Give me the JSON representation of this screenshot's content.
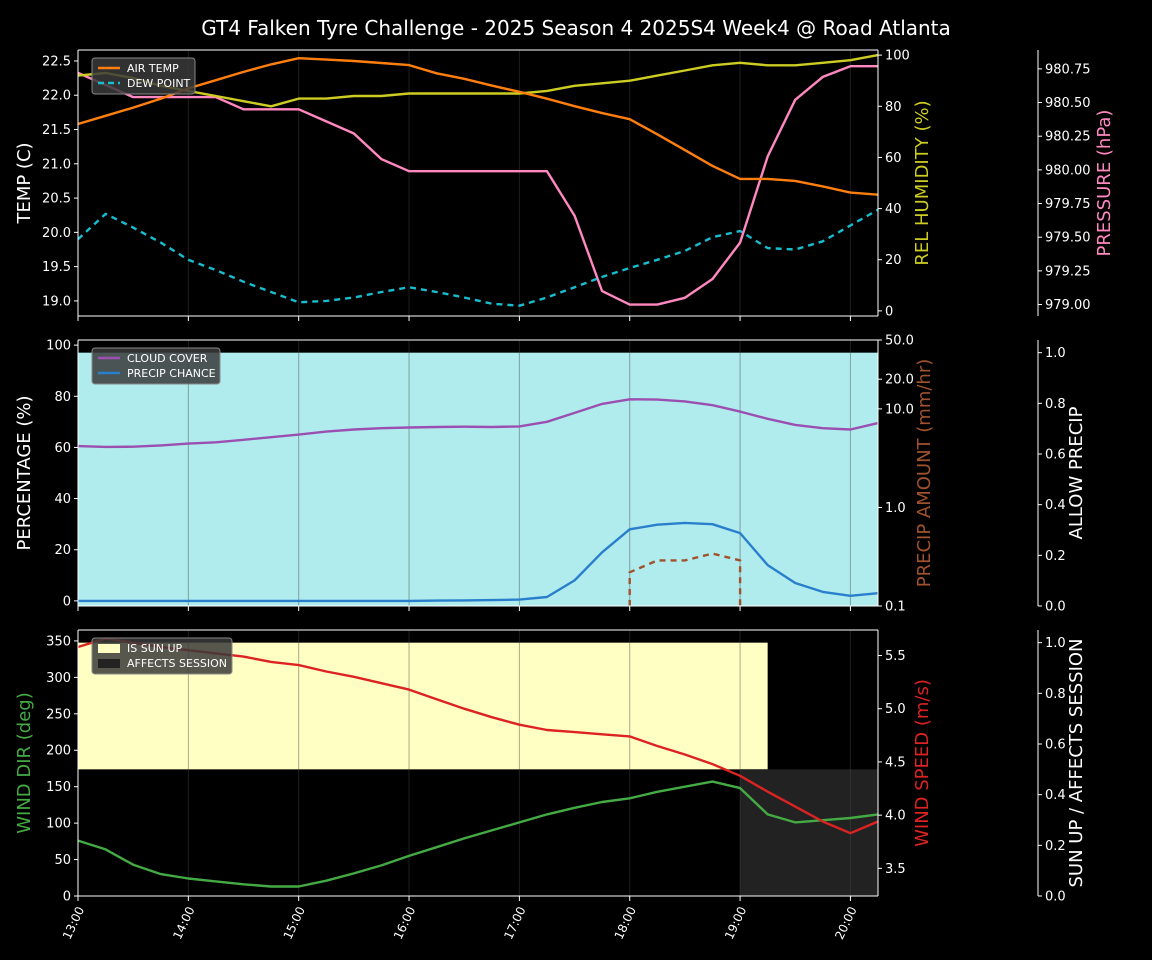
{
  "title": "GT4 Falken Tyre Challenge - 2025 Season 4 2025S4 Week4 @ Road Atlanta",
  "x_ticks": [
    "13:00",
    "14:00",
    "15:00",
    "16:00",
    "17:00",
    "18:00",
    "19:00",
    "20:00"
  ],
  "colors": {
    "air_temp": "#ff7f0e",
    "dew_point": "#17becf",
    "humidity": "#cccc22",
    "pressure": "#ff88c0",
    "cloud": "#9b4fb0",
    "precip_chance": "#2a7fcc",
    "precip_amount": "#a0522d",
    "allow_precip_fill": "#b0ecee",
    "wind_dir": "#44aa44",
    "wind_speed": "#dd2222",
    "sun_up": "#ffffc4",
    "affects_session": "#222222"
  },
  "chart_data": [
    {
      "type": "line",
      "name": "temperature",
      "ylabel": "TEMP (C)",
      "ylim": [
        18.78,
        22.66
      ],
      "y_ticks": [
        "19.0",
        "19.5",
        "20.0",
        "20.5",
        "21.0",
        "21.5",
        "22.0",
        "22.5"
      ],
      "y2label": "REL HUMIDITY (%)",
      "y2lim": [
        -2,
        102
      ],
      "y2_ticks": [
        "0",
        "20",
        "40",
        "60",
        "80",
        "100"
      ],
      "y3label": "PRESSURE (hPa)",
      "y3lim": [
        978.915,
        980.89
      ],
      "y3_ticks": [
        "979.00",
        "979.25",
        "979.50",
        "979.75",
        "980.00",
        "980.25",
        "980.50",
        "980.75"
      ],
      "legend": [
        "AIR TEMP",
        "DEW POINT"
      ],
      "legend_position": "top-left",
      "x": [
        13,
        13.25,
        13.5,
        13.75,
        14,
        14.25,
        14.5,
        14.75,
        15,
        15.25,
        15.5,
        15.75,
        16,
        16.25,
        16.5,
        16.75,
        17,
        17.25,
        17.5,
        17.75,
        18,
        18.25,
        18.5,
        18.75,
        19,
        19.25,
        19.5,
        19.75,
        20,
        20.25
      ],
      "series": [
        {
          "name": "AIR TEMP",
          "axis": "left",
          "values": [
            21.58,
            21.7,
            21.82,
            21.95,
            22.1,
            22.22,
            22.34,
            22.45,
            22.54,
            22.52,
            22.5,
            22.47,
            22.44,
            22.32,
            22.24,
            22.14,
            22.05,
            21.95,
            21.84,
            21.74,
            21.65,
            21.43,
            21.2,
            20.97,
            20.78,
            20.78,
            20.75,
            20.67,
            20.58,
            20.55
          ]
        },
        {
          "name": "DEW POINT",
          "axis": "left",
          "dashed": true,
          "values": [
            19.9,
            20.27,
            20.07,
            19.85,
            19.6,
            19.45,
            19.28,
            19.13,
            18.98,
            19.0,
            19.05,
            19.13,
            19.2,
            19.13,
            19.05,
            18.96,
            18.93,
            19.05,
            19.2,
            19.35,
            19.48,
            19.6,
            19.73,
            19.93,
            20.02,
            19.77,
            19.75,
            19.87,
            20.1,
            20.33
          ]
        },
        {
          "name": "REL HUMIDITY",
          "axis": "right",
          "values": [
            92,
            93,
            91,
            88,
            86,
            84,
            82,
            80,
            83,
            83,
            84,
            84,
            85,
            85,
            85,
            85,
            85,
            86,
            88,
            89,
            90,
            92,
            94,
            96,
            97,
            96,
            96,
            97,
            98,
            100
          ]
        },
        {
          "name": "PRESSURE",
          "axis": "right2",
          "values": [
            980.72,
            980.63,
            980.54,
            980.54,
            980.54,
            980.54,
            980.45,
            980.45,
            980.45,
            980.36,
            980.27,
            980.08,
            979.99,
            979.99,
            979.99,
            979.99,
            979.99,
            979.99,
            979.66,
            979.1,
            979.0,
            979.0,
            979.05,
            979.19,
            979.46,
            980.1,
            980.52,
            980.69,
            980.77,
            980.77
          ]
        }
      ]
    },
    {
      "type": "line",
      "name": "clouds-precip",
      "ylabel": "PERCENTAGE (%)",
      "ylim": [
        -2,
        102
      ],
      "y_ticks": [
        "0",
        "20",
        "40",
        "60",
        "80",
        "100"
      ],
      "y2label": "PRECIP AMOUNT (mm/hr)",
      "y2_log": true,
      "y2lim": [
        0.1,
        50
      ],
      "y2_ticks": [
        "0.1",
        "1.0",
        "10.0",
        "20.0",
        "50.0"
      ],
      "y3label": "ALLOW PRECIP",
      "y3lim": [
        0,
        1.05
      ],
      "y3_ticks": [
        "0.0",
        "0.2",
        "0.4",
        "0.6",
        "0.8",
        "1.0"
      ],
      "legend": [
        "CLOUD COVER",
        "PRECIP CHANCE"
      ],
      "legend_position": "top-left",
      "allow_precip_level": 1.0,
      "x": [
        13,
        13.25,
        13.5,
        13.75,
        14,
        14.25,
        14.5,
        14.75,
        15,
        15.25,
        15.5,
        15.75,
        16,
        16.25,
        16.5,
        16.75,
        17,
        17.25,
        17.5,
        17.75,
        18,
        18.25,
        18.5,
        18.75,
        19,
        19.25,
        19.5,
        19.75,
        20,
        20.25
      ],
      "series": [
        {
          "name": "CLOUD COVER",
          "values": [
            60.5,
            60.2,
            60.3,
            60.8,
            61.5,
            62.0,
            63.0,
            64.0,
            65.0,
            66.2,
            67.0,
            67.5,
            67.8,
            68.0,
            68.1,
            68.0,
            68.2,
            70.0,
            73.5,
            77.0,
            78.8,
            78.7,
            78.0,
            76.5,
            74.0,
            71.2,
            68.8,
            67.5,
            67.0,
            69.5
          ]
        },
        {
          "name": "PRECIP CHANCE",
          "values": [
            0,
            0,
            0,
            0,
            0,
            0,
            0,
            0,
            0,
            0,
            0,
            0,
            0,
            0.1,
            0.2,
            0.3,
            0.5,
            1.5,
            8,
            19,
            28,
            29.8,
            30.5,
            30,
            26.5,
            14,
            7,
            3.5,
            2,
            3
          ]
        },
        {
          "name": "PRECIP AMOUNT",
          "axis": "right",
          "dashed": true,
          "x": [
            18,
            18,
            18.25,
            18.5,
            18.75,
            19,
            19
          ],
          "values": [
            0.1,
            0.22,
            0.29,
            0.29,
            0.34,
            0.29,
            0.1
          ]
        }
      ]
    },
    {
      "type": "line",
      "name": "wind-sun",
      "ylabel": "WIND DIR (deg)",
      "ylim": [
        0,
        365
      ],
      "y_ticks": [
        "0",
        "50",
        "100",
        "150",
        "200",
        "250",
        "300",
        "350"
      ],
      "y2label": "WIND SPEED (m/s)",
      "y2lim": [
        3.24,
        5.74
      ],
      "y2_ticks": [
        "3.5",
        "4.0",
        "4.5",
        "5.0",
        "5.5"
      ],
      "y3label": "SUN UP / AFFECTS SESSION",
      "y3lim": [
        0,
        1.05
      ],
      "y3_ticks": [
        "0.0",
        "0.2",
        "0.4",
        "0.6",
        "0.8",
        "1.0"
      ],
      "legend": [
        "IS SUN UP",
        "AFFECTS SESSION"
      ],
      "legend_position": "top-left",
      "sun_up": {
        "x_end": 19.25,
        "level": 1.0,
        "bottom_level": 0.5
      },
      "affects_session": {
        "x_start": 19.0,
        "level": 0.5
      },
      "x": [
        13,
        13.25,
        13.5,
        13.75,
        14,
        14.25,
        14.5,
        14.75,
        15,
        15.25,
        15.5,
        15.75,
        16,
        16.25,
        16.5,
        16.75,
        17,
        17.25,
        17.5,
        17.75,
        18,
        18.25,
        18.5,
        18.75,
        19,
        19.25,
        19.5,
        19.75,
        20,
        20.25
      ],
      "series": [
        {
          "name": "WIND DIR",
          "values": [
            76,
            64,
            43,
            30,
            24,
            20,
            16,
            13,
            13,
            21,
            31,
            42,
            55,
            67,
            79,
            90,
            101,
            112,
            121,
            129,
            134,
            143,
            150,
            157,
            148,
            112,
            101,
            104,
            107,
            112
          ]
        },
        {
          "name": "WIND SPEED",
          "axis": "right",
          "values": [
            5.58,
            5.66,
            5.62,
            5.58,
            5.55,
            5.52,
            5.49,
            5.44,
            5.41,
            5.35,
            5.3,
            5.24,
            5.18,
            5.09,
            5.0,
            4.92,
            4.85,
            4.8,
            4.78,
            4.76,
            4.74,
            4.65,
            4.57,
            4.48,
            4.37,
            4.22,
            4.08,
            3.94,
            3.83,
            3.94
          ]
        }
      ]
    }
  ]
}
